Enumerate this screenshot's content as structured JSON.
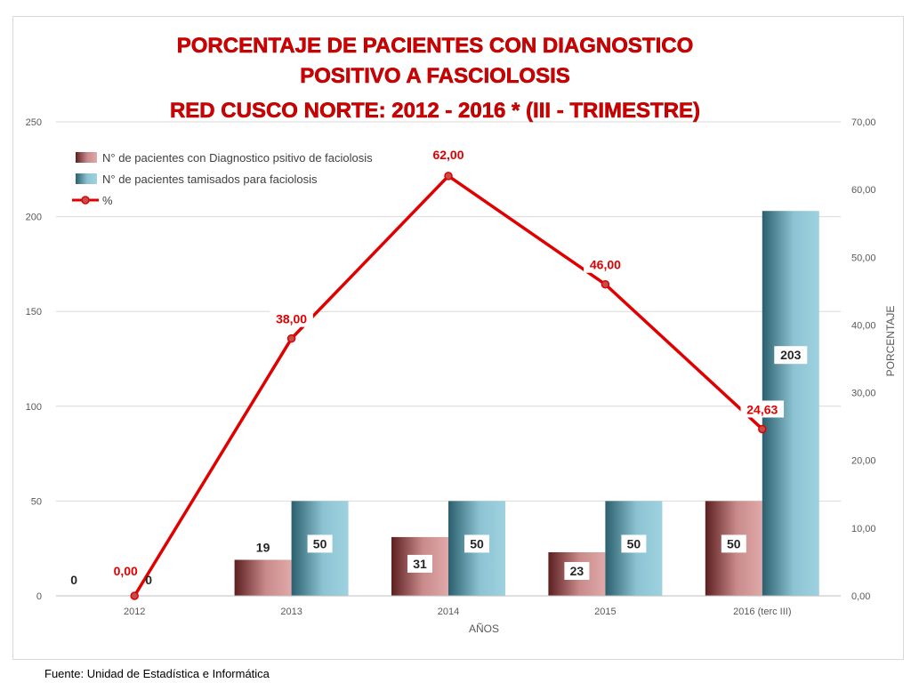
{
  "chart_data": {
    "type": "bar",
    "title": [
      "PORCENTAJE DE PACIENTES CON DIAGNOSTICO",
      "POSITIVO A FASCIOLOSIS",
      "RED CUSCO NORTE: 2012 - 2016 * (III - TRIMESTRE)"
    ],
    "xlabel": "AÑOS",
    "ylabel": "",
    "y2label": "PORCENTAJE",
    "categories": [
      "2012",
      "2013",
      "2014",
      "2015",
      "2016 (terc III)"
    ],
    "ylim": [
      0,
      250
    ],
    "yticks": [
      "0",
      "50",
      "100",
      "150",
      "200",
      "250"
    ],
    "y2lim": [
      0,
      70
    ],
    "y2ticks": [
      "0,00",
      "10,00",
      "20,00",
      "30,00",
      "40,00",
      "50,00",
      "60,00",
      "70,00"
    ],
    "series": [
      {
        "name": "N° de pacientes con Diagnostico psitivo de faciolosis",
        "type": "bar",
        "values": [
          0,
          19,
          31,
          23,
          50
        ],
        "labels": [
          "0",
          "19",
          "31",
          "23",
          "50"
        ],
        "color": "#8b3a3a"
      },
      {
        "name": "N° de pacientes tamisados para faciolosis",
        "type": "bar",
        "values": [
          0,
          50,
          50,
          50,
          203
        ],
        "labels": [
          "0",
          "50",
          "50",
          "50",
          "203"
        ],
        "color": "#4a8a9a"
      },
      {
        "name": "%",
        "type": "line",
        "axis": "secondary",
        "values": [
          0,
          38,
          62,
          46,
          24.63
        ],
        "labels": [
          "0,00",
          "38,00",
          "62,00",
          "46,00",
          "24,63"
        ],
        "color": "#e00000"
      }
    ],
    "grid": true,
    "legend": "top-left"
  },
  "footer": {
    "source": "Fuente: Unidad de Estadística e Informática"
  }
}
